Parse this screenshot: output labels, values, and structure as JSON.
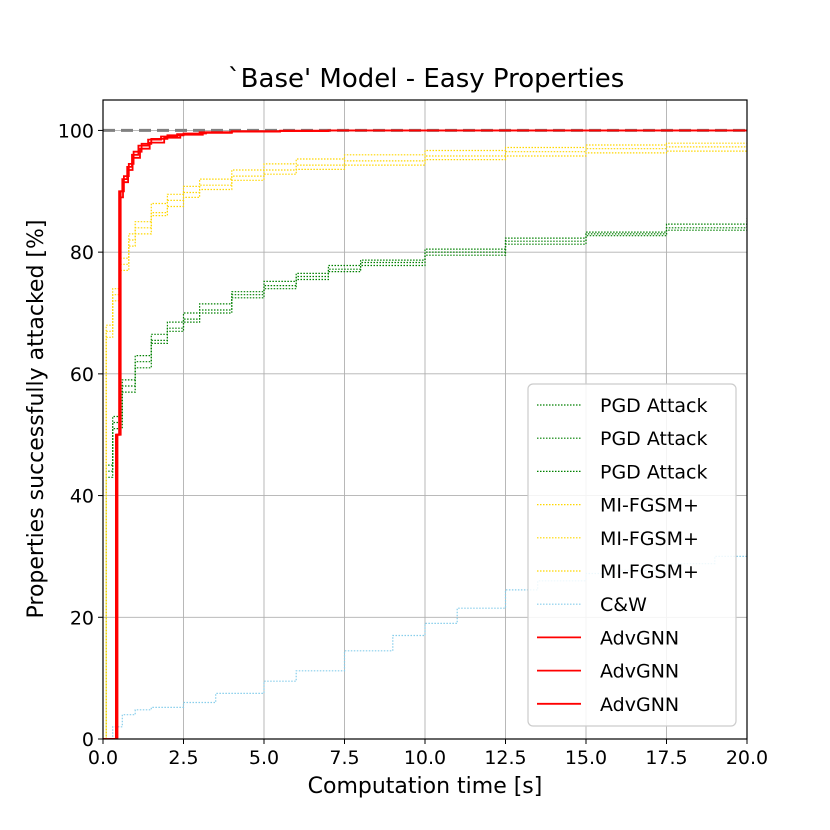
{
  "chart_data": {
    "type": "line",
    "title": "`Base' Model - Easy Properties",
    "xlabel": "Computation time [s]",
    "ylabel": "Properties successfully attacked [%]",
    "xlim": [
      0,
      20
    ],
    "ylim": [
      0,
      105
    ],
    "xticks": [
      "0.0",
      "2.5",
      "5.0",
      "7.5",
      "10.0",
      "12.5",
      "15.0",
      "17.5",
      "20.0"
    ],
    "yticks": [
      "0",
      "20",
      "40",
      "60",
      "80",
      "100"
    ],
    "grid": true,
    "legend_position": "lower-right",
    "reference_line": {
      "y": 100,
      "color": "#808080",
      "style": "dashed"
    },
    "series": [
      {
        "name": "PGD Attack",
        "color": "#008000",
        "style": "dotted",
        "x": [
          0,
          0.1,
          0.3,
          0.6,
          1.0,
          1.5,
          2.0,
          2.5,
          3.0,
          4.0,
          5.0,
          6.0,
          7.0,
          8.0,
          10.0,
          12.5,
          15.0,
          17.5,
          20.0
        ],
        "y": [
          0,
          44,
          52,
          58,
          62,
          65.5,
          67.5,
          69,
          70.5,
          73,
          74.5,
          76,
          77.2,
          78.3,
          80,
          81.8,
          83,
          84,
          85
        ]
      },
      {
        "name": "PGD Attack",
        "color": "#008000",
        "style": "dotted",
        "x": [
          0,
          0.1,
          0.3,
          0.6,
          1.0,
          1.5,
          2.0,
          2.5,
          3.0,
          4.0,
          5.0,
          6.0,
          7.0,
          8.0,
          10.0,
          12.5,
          15.0,
          17.5,
          20.0
        ],
        "y": [
          0,
          45,
          53,
          59,
          63,
          66.5,
          68.5,
          70,
          71.5,
          73.5,
          75.2,
          76.5,
          77.8,
          78.7,
          80.5,
          82.3,
          83.3,
          84.6,
          85.6
        ]
      },
      {
        "name": "PGD Attack",
        "color": "#008000",
        "style": "dotted",
        "x": [
          0,
          0.1,
          0.3,
          0.6,
          1.0,
          1.5,
          2.0,
          2.5,
          3.0,
          4.0,
          5.0,
          6.0,
          7.0,
          8.0,
          10.0,
          12.5,
          15.0,
          17.5,
          20.0
        ],
        "y": [
          0,
          43,
          51,
          57,
          61,
          65,
          67,
          68.5,
          70,
          72.5,
          74,
          75.5,
          76.8,
          77.8,
          79.5,
          81.3,
          82.7,
          83.6,
          84.6
        ]
      },
      {
        "name": "MI-FGSM+",
        "color": "#FFD700",
        "style": "dotted",
        "x": [
          0,
          0.1,
          0.3,
          0.5,
          0.8,
          1.0,
          1.5,
          2.0,
          2.5,
          3.0,
          4.0,
          5.0,
          6.0,
          7.5,
          10.0,
          12.5,
          15.0,
          17.5,
          20.0
        ],
        "y": [
          0,
          67,
          73,
          78,
          82,
          84,
          86.5,
          88.5,
          89.8,
          91,
          92.5,
          93.5,
          94.3,
          95,
          95.8,
          96.5,
          97,
          97.3,
          97.5
        ]
      },
      {
        "name": "MI-FGSM+",
        "color": "#FFD700",
        "style": "dotted",
        "x": [
          0,
          0.1,
          0.3,
          0.5,
          0.8,
          1.0,
          1.5,
          2.0,
          2.5,
          3.0,
          4.0,
          5.0,
          6.0,
          7.5,
          10.0,
          12.5,
          15.0,
          17.5,
          20.0
        ],
        "y": [
          0,
          66,
          72,
          77,
          81,
          83,
          86,
          87.5,
          89,
          90.3,
          91.8,
          92.8,
          93.6,
          94.3,
          95.2,
          95.8,
          96.3,
          96.6,
          96.8
        ]
      },
      {
        "name": "MI-FGSM+",
        "color": "#FFD700",
        "style": "dotted",
        "x": [
          0,
          0.1,
          0.3,
          0.5,
          0.8,
          1.0,
          1.5,
          2.0,
          2.5,
          3.0,
          4.0,
          5.0,
          6.0,
          7.5,
          10.0,
          12.5,
          15.0,
          17.5,
          20.0
        ],
        "y": [
          0,
          68,
          74,
          79,
          83,
          85,
          88,
          89.5,
          90.8,
          92,
          93.5,
          94.5,
          95.3,
          96,
          96.7,
          97.2,
          97.6,
          97.9,
          98
        ]
      },
      {
        "name": "C&W",
        "color": "#87CEEB",
        "style": "dotted",
        "x": [
          0,
          0.3,
          0.6,
          1.0,
          1.5,
          2.5,
          3.5,
          5.0,
          6.0,
          7.5,
          9.0,
          10.0,
          11.0,
          12.5,
          13.5,
          15.0,
          16.0,
          17.5,
          19.0,
          20.0
        ],
        "y": [
          0,
          2,
          4,
          4.8,
          5.2,
          6,
          7.5,
          9.5,
          11.2,
          14.5,
          17,
          19,
          21.5,
          24.5,
          26,
          27.2,
          27.7,
          28.8,
          30,
          30.8
        ]
      },
      {
        "name": "AdvGNN",
        "color": "#FF0000",
        "style": "solid",
        "x": [
          0,
          0.35,
          0.4,
          0.5,
          0.6,
          0.75,
          0.9,
          1.1,
          1.4,
          1.8,
          2.3,
          3.0,
          4.0,
          5.5,
          7.0,
          10.0,
          20.0
        ],
        "y": [
          0,
          0,
          50,
          90,
          92,
          94,
          96,
          97.5,
          98.5,
          99,
          99.4,
          99.7,
          99.85,
          99.9,
          100,
          100,
          100
        ]
      },
      {
        "name": "AdvGNN",
        "color": "#FF0000",
        "style": "solid",
        "x": [
          0,
          0.4,
          0.45,
          0.55,
          0.65,
          0.8,
          0.95,
          1.2,
          1.5,
          2.0,
          2.5,
          3.2,
          4.0,
          5.5,
          7.0,
          10.0,
          20.0
        ],
        "y": [
          0,
          0,
          50,
          90,
          92.5,
          94.5,
          96.5,
          97.8,
          98.6,
          99.2,
          99.5,
          99.7,
          99.85,
          99.95,
          100,
          100,
          100
        ]
      },
      {
        "name": "AdvGNN",
        "color": "#FF0000",
        "style": "solid",
        "x": [
          0,
          0.38,
          0.43,
          0.52,
          0.62,
          0.78,
          0.92,
          1.15,
          1.45,
          1.9,
          2.4,
          3.1,
          4.0,
          5.5,
          7.0,
          10.0,
          20.0
        ],
        "y": [
          0,
          0,
          50,
          89,
          91.5,
          93.5,
          95.5,
          97,
          98,
          98.8,
          99.3,
          99.6,
          99.8,
          99.9,
          100,
          100,
          100
        ]
      }
    ]
  }
}
